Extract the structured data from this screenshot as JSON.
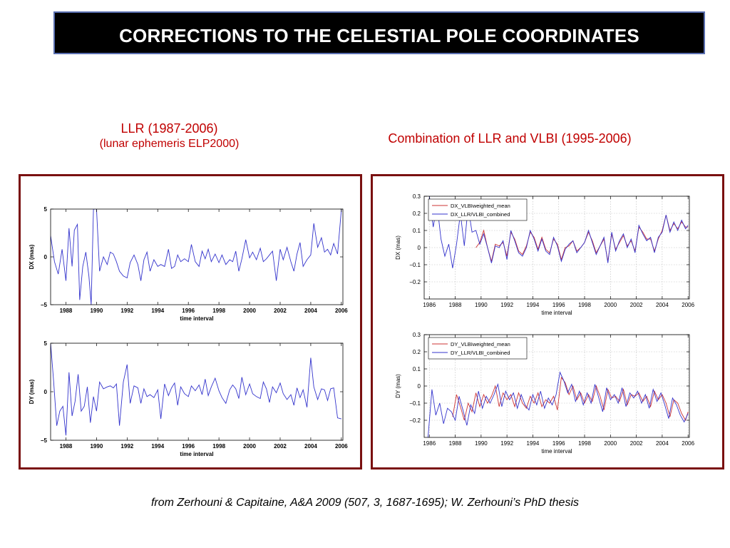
{
  "title": "CORRECTIONS TO THE CELESTIAL POLE COORDINATES",
  "left_caption": {
    "line1": "LLR (1987-2006)",
    "line2": "(lunar ephemeris ELP2000)"
  },
  "right_caption": "Combination of LLR and VLBI (1995-2006)",
  "footer": "from Zerhouni & Capitaine, A&A 2009 (507, 3, 1687-1695); W. Zerhouni’s  PhD thesis",
  "colors": {
    "accent": "#c00000",
    "frame": "#7a1010",
    "blue": "#3333cc",
    "red": "#cc3333"
  },
  "chart_data": [
    {
      "type": "line",
      "xlabel": "time interval",
      "ylabel": "DX (mas)",
      "xlim": [
        1987.0,
        2006.1
      ],
      "ylim": [
        -5,
        5
      ],
      "xticks": [
        1988,
        1990,
        1992,
        1994,
        1996,
        1998,
        2000,
        2002,
        2004,
        2006
      ],
      "yticks": [
        -5,
        0,
        5
      ],
      "series": [
        {
          "color": "#3333cc",
          "x": [
            1987.0,
            1987.25,
            1987.5,
            1987.75,
            1988.0,
            1988.2,
            1988.4,
            1988.55,
            1988.75,
            1988.9,
            1989.1,
            1989.3,
            1989.5,
            1989.65,
            1989.8,
            1990.0,
            1990.2,
            1990.45,
            1990.7,
            1990.9,
            1991.1,
            1991.3,
            1991.5,
            1991.75,
            1992.0,
            1992.2,
            1992.45,
            1992.7,
            1992.9,
            1993.1,
            1993.3,
            1993.5,
            1993.75,
            1994.0,
            1994.2,
            1994.45,
            1994.7,
            1994.9,
            1995.1,
            1995.3,
            1995.5,
            1995.75,
            1996.0,
            1996.2,
            1996.45,
            1996.7,
            1996.9,
            1997.1,
            1997.3,
            1997.5,
            1997.75,
            1998.0,
            1998.2,
            1998.45,
            1998.7,
            1998.9,
            1999.1,
            1999.3,
            1999.5,
            1999.75,
            2000.0,
            2000.2,
            2000.45,
            2000.7,
            2000.9,
            2001.1,
            2001.3,
            2001.5,
            2001.75,
            2002.0,
            2002.2,
            2002.45,
            2002.7,
            2002.9,
            2003.1,
            2003.3,
            2003.5,
            2003.75,
            2004.0,
            2004.2,
            2004.45,
            2004.7,
            2004.9,
            2005.1,
            2005.3,
            2005.5,
            2005.75,
            2006.0
          ],
          "y": [
            2.2,
            -0.5,
            -1.8,
            0.8,
            -2.5,
            3.0,
            -1.0,
            2.8,
            3.4,
            -4.5,
            -1.0,
            0.5,
            -2.0,
            -5.0,
            5.0,
            5.0,
            -1.5,
            0.0,
            -0.8,
            0.5,
            0.3,
            -0.5,
            -1.5,
            -2.0,
            -2.2,
            -0.6,
            0.2,
            -0.8,
            -2.5,
            -0.3,
            0.5,
            -1.5,
            -0.3,
            -1.0,
            -0.8,
            -1.0,
            0.8,
            -1.2,
            -1.0,
            0.2,
            -0.5,
            -0.2,
            -0.5,
            1.3,
            -0.5,
            -1.0,
            0.6,
            -0.2,
            0.8,
            -0.5,
            0.3,
            -0.6,
            0.2,
            -0.8,
            -0.3,
            -0.5,
            0.6,
            -1.5,
            -0.2,
            1.8,
            -0.1,
            0.5,
            -0.3,
            0.9,
            -0.5,
            -0.2,
            0.2,
            0.6,
            -2.5,
            0.8,
            -0.3,
            1.0,
            -0.5,
            -1.5,
            0.3,
            1.5,
            -1.0,
            -0.3,
            0.2,
            3.5,
            1.0,
            2.0,
            0.5,
            0.8,
            0.2,
            1.4,
            0.3,
            5.0
          ]
        }
      ]
    },
    {
      "type": "line",
      "xlabel": "time interval",
      "ylabel": "DY (mas)",
      "xlim": [
        1987.0,
        2006.1
      ],
      "ylim": [
        -5,
        5
      ],
      "xticks": [
        1988,
        1990,
        1992,
        1994,
        1996,
        1998,
        2000,
        2002,
        2004,
        2006
      ],
      "yticks": [
        -5,
        0,
        5
      ],
      "series": [
        {
          "color": "#3333cc",
          "x": [
            1987.0,
            1987.2,
            1987.4,
            1987.6,
            1987.8,
            1988.0,
            1988.2,
            1988.4,
            1988.6,
            1988.8,
            1989.0,
            1989.2,
            1989.4,
            1989.6,
            1989.8,
            1990.0,
            1990.2,
            1990.45,
            1990.7,
            1990.9,
            1991.1,
            1991.3,
            1991.5,
            1991.75,
            1992.0,
            1992.2,
            1992.45,
            1992.7,
            1992.9,
            1993.1,
            1993.3,
            1993.5,
            1993.75,
            1994.0,
            1994.2,
            1994.45,
            1994.7,
            1994.9,
            1995.1,
            1995.3,
            1995.5,
            1995.75,
            1996.0,
            1996.2,
            1996.45,
            1996.7,
            1996.9,
            1997.1,
            1997.3,
            1997.5,
            1997.75,
            1998.0,
            1998.2,
            1998.45,
            1998.7,
            1998.9,
            1999.1,
            1999.3,
            1999.5,
            1999.75,
            2000.0,
            2000.2,
            2000.45,
            2000.7,
            2000.9,
            2001.1,
            2001.3,
            2001.5,
            2001.75,
            2002.0,
            2002.2,
            2002.45,
            2002.7,
            2002.9,
            2003.1,
            2003.3,
            2003.5,
            2003.75,
            2004.0,
            2004.2,
            2004.45,
            2004.7,
            2004.9,
            2005.1,
            2005.3,
            2005.5,
            2005.75,
            2006.0
          ],
          "y": [
            5.0,
            1.0,
            -3.5,
            -2.0,
            -1.5,
            -4.5,
            2.0,
            -2.5,
            -1.0,
            1.8,
            -2.0,
            -1.5,
            0.5,
            -3.2,
            -0.5,
            -2.0,
            1.0,
            0.3,
            0.5,
            0.6,
            0.4,
            0.8,
            -3.5,
            1.0,
            2.8,
            -1.2,
            0.6,
            0.4,
            -1.2,
            0.3,
            -0.5,
            -0.3,
            -0.6,
            0.2,
            -2.8,
            0.8,
            -0.4,
            0.4,
            0.9,
            -1.4,
            0.5,
            -0.2,
            -0.5,
            0.6,
            0.1,
            0.7,
            -0.3,
            1.3,
            -0.4,
            0.5,
            1.4,
            0.1,
            -0.6,
            -1.2,
            0.2,
            0.7,
            0.3,
            -0.7,
            1.5,
            -0.3,
            0.8,
            -0.2,
            -0.5,
            -0.7,
            1.0,
            0.3,
            -1.1,
            0.5,
            -0.1,
            0.9,
            -0.2,
            -0.8,
            -0.3,
            -1.4,
            0.4,
            -0.6,
            0.2,
            -1.6,
            3.5,
            0.5,
            -0.8,
            0.3,
            0.2,
            -0.9,
            0.3,
            0.4,
            -2.7,
            -2.8
          ]
        }
      ]
    },
    {
      "type": "line",
      "xlabel": "time interval",
      "ylabel": "DX (mas)",
      "xlim": [
        1985.6,
        2006.1
      ],
      "ylim": [
        -0.3,
        0.3
      ],
      "xticks": [
        1986,
        1988,
        1990,
        1992,
        1994,
        1996,
        1998,
        2000,
        2002,
        2004,
        2006
      ],
      "yticks": [
        -0.2,
        -0.1,
        0,
        0.1,
        0.2,
        0.3
      ],
      "grid": true,
      "legend": "top-left",
      "series": [
        {
          "name": "DX_VLBIweighted_mean",
          "color": "#cc3333",
          "x": [
            1989.6,
            1989.9,
            1990.2,
            1990.5,
            1990.8,
            1991.1,
            1991.4,
            1991.7,
            1992.0,
            1992.3,
            1992.6,
            1992.9,
            1993.2,
            1993.5,
            1993.8,
            1994.1,
            1994.4,
            1994.7,
            1995.0,
            1995.3,
            1995.6,
            1995.9,
            1996.2,
            1996.5,
            1996.8,
            1997.1,
            1997.4,
            1997.7,
            1998.0,
            1998.3,
            1998.6,
            1998.9,
            1999.2,
            1999.5,
            1999.8,
            2000.1,
            2000.4,
            2000.7,
            2001.0,
            2001.3,
            2001.6,
            2001.9,
            2002.2,
            2002.5,
            2002.8,
            2003.1,
            2003.4,
            2003.7,
            2004.0,
            2004.3,
            2004.6,
            2004.9,
            2005.2,
            2005.5,
            2005.8,
            2006.0
          ],
          "y": [
            0.0,
            0.03,
            0.1,
            0.0,
            -0.08,
            0.02,
            0.01,
            0.03,
            -0.05,
            0.09,
            0.05,
            -0.02,
            -0.04,
            0.01,
            0.09,
            0.06,
            -0.01,
            0.06,
            -0.01,
            -0.03,
            0.05,
            0.02,
            -0.07,
            0.0,
            0.01,
            0.04,
            -0.02,
            0.0,
            0.03,
            0.09,
            0.04,
            -0.03,
            0.01,
            0.05,
            -0.08,
            0.08,
            -0.01,
            0.03,
            0.07,
            0.01,
            0.04,
            -0.02,
            0.12,
            0.09,
            0.05,
            0.05,
            -0.02,
            0.05,
            0.1,
            0.19,
            0.1,
            0.14,
            0.11,
            0.15,
            0.12,
            0.12
          ]
        },
        {
          "name": "DX_LLR/VLBI_combined",
          "color": "#3333cc",
          "x": [
            1986.0,
            1986.3,
            1986.6,
            1986.9,
            1987.2,
            1987.5,
            1987.8,
            1988.1,
            1988.4,
            1988.7,
            1989.0,
            1989.3,
            1989.6,
            1989.9,
            1990.2,
            1990.5,
            1990.8,
            1991.1,
            1991.4,
            1991.7,
            1992.0,
            1992.3,
            1992.6,
            1992.9,
            1993.2,
            1993.5,
            1993.8,
            1994.1,
            1994.4,
            1994.7,
            1995.0,
            1995.3,
            1995.6,
            1995.9,
            1996.2,
            1996.5,
            1996.8,
            1997.1,
            1997.4,
            1997.7,
            1998.0,
            1998.3,
            1998.6,
            1998.9,
            1999.2,
            1999.5,
            1999.8,
            2000.1,
            2000.4,
            2000.7,
            2001.0,
            2001.3,
            2001.6,
            2001.9,
            2002.2,
            2002.5,
            2002.8,
            2003.1,
            2003.4,
            2003.7,
            2004.0,
            2004.3,
            2004.6,
            2004.9,
            2005.2,
            2005.5,
            2005.8,
            2006.0
          ],
          "y": [
            0.3,
            0.12,
            0.25,
            0.05,
            -0.05,
            0.02,
            -0.12,
            0.02,
            0.2,
            0.01,
            0.24,
            0.09,
            0.1,
            0.02,
            0.08,
            0.0,
            -0.09,
            0.01,
            0.0,
            0.04,
            -0.07,
            0.1,
            0.04,
            -0.03,
            -0.05,
            0.0,
            0.1,
            0.05,
            -0.02,
            0.05,
            -0.02,
            -0.04,
            0.06,
            0.01,
            -0.08,
            -0.01,
            0.02,
            0.04,
            -0.03,
            0.0,
            0.03,
            0.1,
            0.03,
            -0.04,
            0.01,
            0.06,
            -0.09,
            0.09,
            -0.02,
            0.04,
            0.08,
            0.0,
            0.05,
            -0.03,
            0.13,
            0.08,
            0.04,
            0.06,
            -0.03,
            0.06,
            0.09,
            0.19,
            0.09,
            0.15,
            0.1,
            0.16,
            0.11,
            0.13
          ]
        }
      ]
    },
    {
      "type": "line",
      "xlabel": "time interval",
      "ylabel": "DY (mas)",
      "xlim": [
        1985.6,
        2006.1
      ],
      "ylim": [
        -0.3,
        0.3
      ],
      "xticks": [
        1986,
        1988,
        1990,
        1992,
        1994,
        1996,
        1998,
        2000,
        2002,
        2004,
        2006
      ],
      "yticks": [
        -0.2,
        -0.1,
        0,
        0.1,
        0.2,
        0.3
      ],
      "grid": true,
      "legend": "top-left",
      "series": [
        {
          "name": "DY_VLBIweighted_mean",
          "color": "#cc3333",
          "x": [
            1987.8,
            1988.1,
            1988.4,
            1988.7,
            1989.0,
            1989.3,
            1989.6,
            1989.9,
            1990.2,
            1990.5,
            1990.8,
            1991.1,
            1991.4,
            1991.7,
            1992.0,
            1992.3,
            1992.6,
            1992.9,
            1993.2,
            1993.5,
            1993.8,
            1994.1,
            1994.4,
            1994.7,
            1995.0,
            1995.3,
            1995.6,
            1995.9,
            1996.2,
            1996.5,
            1996.8,
            1997.1,
            1997.4,
            1997.7,
            1998.0,
            1998.3,
            1998.6,
            1998.9,
            1999.2,
            1999.5,
            1999.8,
            2000.1,
            2000.4,
            2000.7,
            2001.0,
            2001.3,
            2001.6,
            2001.9,
            2002.2,
            2002.5,
            2002.8,
            2003.1,
            2003.4,
            2003.7,
            2004.0,
            2004.3,
            2004.6,
            2004.9,
            2005.2,
            2005.5,
            2005.8,
            2006.0
          ],
          "y": [
            -0.18,
            -0.05,
            -0.12,
            -0.2,
            -0.1,
            -0.15,
            -0.04,
            -0.12,
            -0.05,
            -0.1,
            -0.06,
            0.0,
            -0.12,
            -0.04,
            -0.08,
            -0.05,
            -0.12,
            -0.04,
            -0.1,
            -0.13,
            -0.06,
            -0.1,
            -0.04,
            -0.12,
            -0.08,
            -0.1,
            -0.06,
            -0.14,
            0.05,
            0.02,
            -0.05,
            0.0,
            -0.08,
            -0.04,
            -0.1,
            -0.05,
            -0.09,
            0.0,
            -0.06,
            -0.14,
            -0.02,
            -0.07,
            -0.06,
            -0.09,
            -0.02,
            -0.11,
            -0.05,
            -0.06,
            -0.04,
            -0.09,
            -0.06,
            -0.12,
            -0.03,
            -0.08,
            -0.05,
            -0.1,
            -0.18,
            -0.08,
            -0.1,
            -0.16,
            -0.2,
            -0.15
          ]
        },
        {
          "name": "DY_LLR/VLBI_combined",
          "color": "#3333cc",
          "x": [
            1985.9,
            1986.2,
            1986.5,
            1986.8,
            1987.1,
            1987.4,
            1987.7,
            1988.0,
            1988.3,
            1988.6,
            1988.9,
            1989.2,
            1989.5,
            1989.8,
            1990.1,
            1990.4,
            1990.7,
            1991.0,
            1991.3,
            1991.6,
            1991.9,
            1992.2,
            1992.5,
            1992.8,
            1993.1,
            1993.4,
            1993.7,
            1994.0,
            1994.3,
            1994.6,
            1994.9,
            1995.2,
            1995.5,
            1995.8,
            1996.1,
            1996.4,
            1996.7,
            1997.0,
            1997.3,
            1997.6,
            1997.9,
            1998.2,
            1998.5,
            1998.8,
            1999.1,
            1999.4,
            1999.7,
            2000.0,
            2000.3,
            2000.6,
            2000.9,
            2001.2,
            2001.5,
            2001.8,
            2002.1,
            2002.4,
            2002.7,
            2003.0,
            2003.3,
            2003.6,
            2003.9,
            2004.2,
            2004.5,
            2004.8,
            2005.1,
            2005.4,
            2005.7,
            2006.0
          ],
          "y": [
            -0.3,
            -0.02,
            -0.17,
            -0.1,
            -0.22,
            -0.13,
            -0.15,
            -0.2,
            -0.06,
            -0.14,
            -0.23,
            -0.11,
            -0.16,
            -0.03,
            -0.13,
            -0.06,
            -0.1,
            -0.05,
            0.01,
            -0.12,
            -0.03,
            -0.08,
            -0.04,
            -0.13,
            -0.05,
            -0.11,
            -0.14,
            -0.05,
            -0.11,
            -0.03,
            -0.13,
            -0.07,
            -0.11,
            -0.05,
            0.08,
            0.03,
            -0.04,
            0.01,
            -0.09,
            -0.03,
            -0.11,
            -0.04,
            -0.1,
            0.01,
            -0.07,
            -0.15,
            -0.01,
            -0.08,
            -0.05,
            -0.1,
            -0.01,
            -0.12,
            -0.04,
            -0.07,
            -0.03,
            -0.1,
            -0.05,
            -0.13,
            -0.02,
            -0.09,
            -0.04,
            -0.11,
            -0.19,
            -0.07,
            -0.11,
            -0.17,
            -0.21,
            -0.16
          ]
        }
      ]
    }
  ]
}
